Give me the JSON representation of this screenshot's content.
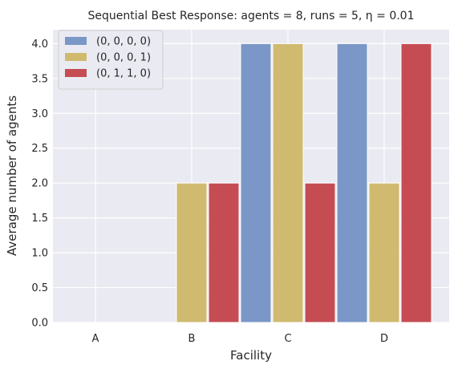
{
  "chart_data": {
    "type": "bar",
    "title": "Sequential Best Response: agents = 8, runs = 5, η = 0.01",
    "xlabel": "Facility",
    "ylabel": "Average number of agents",
    "categories": [
      "A",
      "B",
      "C",
      "D"
    ],
    "series": [
      {
        "name": "(0, 0, 0, 0)",
        "color": "#7a97c7",
        "values": [
          0,
          0,
          4.0,
          4.0
        ]
      },
      {
        "name": "(0, 0, 0, 1)",
        "color": "#cfba70",
        "values": [
          0,
          2.0,
          4.0,
          2.0
        ]
      },
      {
        "name": "(0, 1, 1, 0)",
        "color": "#c54c53",
        "values": [
          0,
          2.0,
          2.0,
          4.0
        ]
      }
    ],
    "ylim": [
      0,
      4.2
    ],
    "yticks": [
      "0.0",
      "0.5",
      "1.0",
      "1.5",
      "2.0",
      "2.5",
      "3.0",
      "3.5",
      "4.0"
    ],
    "grid": true,
    "legend_position": "top-left",
    "plot_background": "#eaeaf2",
    "grid_color": "#ffffff"
  }
}
